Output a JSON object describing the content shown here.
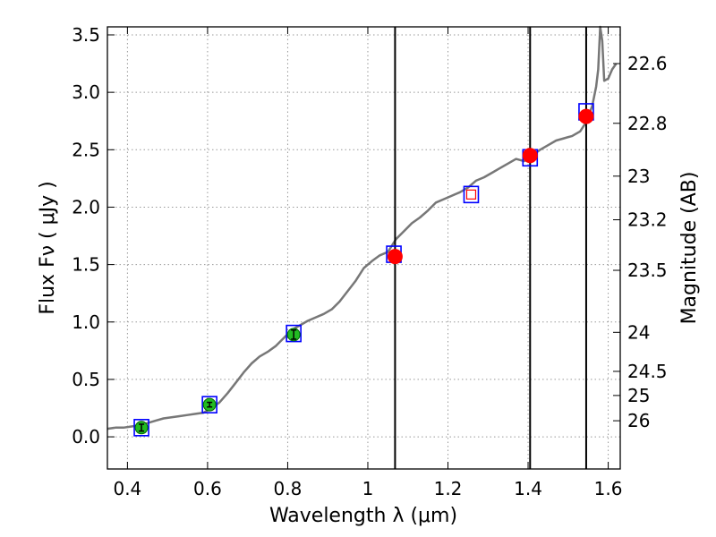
{
  "chart_data": {
    "type": "line",
    "xlabel": "Wavelength  λ (μm)",
    "ylabel": "Flux  Fν  ( μJy )",
    "y2label": "Magnitude (AB)",
    "xlim": [
      0.35,
      1.63
    ],
    "ylim": [
      -0.28,
      3.57
    ],
    "grid": true,
    "x_ticks": [
      {
        "value": 0.4,
        "label": "0.4"
      },
      {
        "value": 0.6,
        "label": "0.6"
      },
      {
        "value": 0.8,
        "label": "0.8"
      },
      {
        "value": 1.0,
        "label": "1"
      },
      {
        "value": 1.2,
        "label": "1.2"
      },
      {
        "value": 1.4,
        "label": "1.4"
      },
      {
        "value": 1.6,
        "label": "1.6"
      }
    ],
    "y_ticks": [
      {
        "value": 0.0,
        "label": "0.0"
      },
      {
        "value": 0.5,
        "label": "0.5"
      },
      {
        "value": 1.0,
        "label": "1.0"
      },
      {
        "value": 1.5,
        "label": "1.5"
      },
      {
        "value": 2.0,
        "label": "2.0"
      },
      {
        "value": 2.5,
        "label": "2.5"
      },
      {
        "value": 3.0,
        "label": "3.0"
      },
      {
        "value": 3.5,
        "label": "3.5"
      }
    ],
    "y2_ticks": [
      {
        "flux": 3.25,
        "label": "22.6"
      },
      {
        "flux": 2.73,
        "label": "22.8"
      },
      {
        "flux": 2.27,
        "label": "23"
      },
      {
        "flux": 1.89,
        "label": "23.2"
      },
      {
        "flux": 1.45,
        "label": "23.5"
      },
      {
        "flux": 0.91,
        "label": "24"
      },
      {
        "flux": 0.57,
        "label": "24.5"
      },
      {
        "flux": 0.36,
        "label": "25"
      },
      {
        "flux": 0.14,
        "label": "26"
      }
    ],
    "vertical_lines": [
      1.068,
      1.405,
      1.545
    ],
    "colors": {
      "sed": "#777777",
      "model_box": "#0000ff",
      "detection": "#ff0000",
      "optical": "#22bb22",
      "vline": "#000000",
      "grid": "#999999"
    },
    "sed": {
      "x": [
        0.35,
        0.37,
        0.39,
        0.41,
        0.43,
        0.45,
        0.47,
        0.49,
        0.51,
        0.53,
        0.55,
        0.57,
        0.59,
        0.61,
        0.63,
        0.65,
        0.67,
        0.69,
        0.71,
        0.73,
        0.75,
        0.77,
        0.79,
        0.81,
        0.83,
        0.85,
        0.87,
        0.89,
        0.91,
        0.93,
        0.95,
        0.97,
        0.99,
        1.01,
        1.03,
        1.05,
        1.07,
        1.09,
        1.11,
        1.13,
        1.15,
        1.17,
        1.19,
        1.21,
        1.23,
        1.25,
        1.27,
        1.29,
        1.31,
        1.33,
        1.35,
        1.37,
        1.39,
        1.41,
        1.43,
        1.45,
        1.47,
        1.49,
        1.51,
        1.53,
        1.545,
        1.56,
        1.57,
        1.575,
        1.58,
        1.585,
        1.59,
        1.6,
        1.61,
        1.62
      ],
      "y": [
        0.07,
        0.08,
        0.08,
        0.09,
        0.1,
        0.12,
        0.14,
        0.16,
        0.17,
        0.18,
        0.19,
        0.2,
        0.21,
        0.25,
        0.3,
        0.38,
        0.47,
        0.56,
        0.64,
        0.7,
        0.74,
        0.79,
        0.86,
        0.93,
        0.97,
        1.01,
        1.04,
        1.07,
        1.11,
        1.18,
        1.27,
        1.36,
        1.47,
        1.53,
        1.58,
        1.61,
        1.72,
        1.79,
        1.86,
        1.91,
        1.97,
        2.04,
        2.07,
        2.1,
        2.13,
        2.17,
        2.23,
        2.26,
        2.3,
        2.34,
        2.38,
        2.42,
        2.4,
        2.45,
        2.5,
        2.54,
        2.58,
        2.6,
        2.62,
        2.66,
        2.74,
        2.88,
        3.05,
        3.2,
        3.57,
        3.45,
        3.1,
        3.12,
        3.2,
        3.25
      ]
    },
    "model_boxes": [
      {
        "x": 0.435,
        "y": 0.08
      },
      {
        "x": 0.605,
        "y": 0.28
      },
      {
        "x": 0.815,
        "y": 0.9
      },
      {
        "x": 1.065,
        "y": 1.59
      },
      {
        "x": 1.258,
        "y": 2.11
      },
      {
        "x": 1.405,
        "y": 2.43
      },
      {
        "x": 1.545,
        "y": 2.83
      }
    ],
    "detections": [
      {
        "x": 1.068,
        "y": 1.57
      },
      {
        "x": 1.405,
        "y": 2.45
      },
      {
        "x": 1.545,
        "y": 2.79
      }
    ],
    "optical_points": [
      {
        "x": 0.435,
        "y": 0.08,
        "err": 0.03
      },
      {
        "x": 0.605,
        "y": 0.28,
        "err": 0.02
      },
      {
        "x": 0.815,
        "y": 0.89,
        "err": 0.04
      }
    ],
    "open_points": [
      {
        "x": 1.258,
        "y": 2.11
      }
    ]
  }
}
